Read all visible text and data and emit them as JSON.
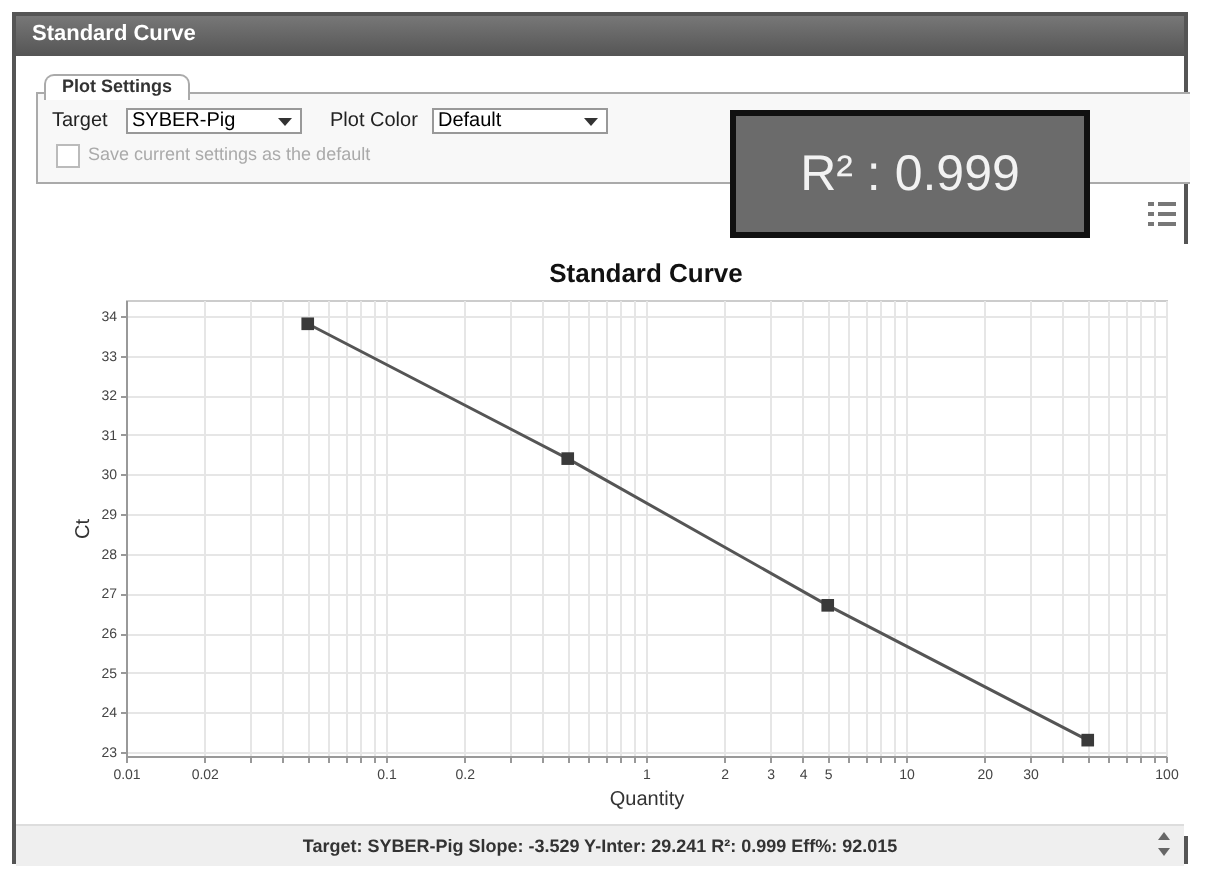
{
  "chart_data": {
    "type": "line",
    "title": "Standard Curve",
    "xlabel": "Quantity",
    "ylabel": "Ct",
    "log": "x",
    "grid": true,
    "marker": "square",
    "line_style": "solid",
    "x": [
      0.05,
      0.5,
      5,
      50
    ],
    "series": [
      {
        "color": "#555555",
        "values": [
          33.8,
          30.4,
          26.7,
          23.3
        ]
      }
    ],
    "xlim": [
      0.01,
      100
    ],
    "ylim": [
      22.9,
      34.4
    ],
    "xticks": [
      0.01,
      0.02,
      {
        "value": 0.03,
        "label": null
      },
      {
        "value": 0.04,
        "label": null
      },
      {
        "value": 0.05,
        "label": null
      },
      {
        "value": 0.06,
        "label": null
      },
      {
        "value": 0.07,
        "label": null
      },
      {
        "value": 0.08,
        "label": null
      },
      {
        "value": 0.09,
        "label": null
      },
      0.1,
      0.2,
      {
        "value": 0.3,
        "label": null
      },
      {
        "value": 0.4,
        "label": null
      },
      {
        "value": 0.5,
        "label": null
      },
      {
        "value": 0.6,
        "label": null
      },
      {
        "value": 0.7,
        "label": null
      },
      {
        "value": 0.8,
        "label": null
      },
      {
        "value": 0.9,
        "label": null
      },
      1,
      2,
      3,
      4,
      5,
      {
        "value": 6,
        "label": null
      },
      {
        "value": 7,
        "label": null
      },
      {
        "value": 8,
        "label": null
      },
      {
        "value": 9,
        "label": null
      },
      10,
      20,
      30,
      {
        "value": 40,
        "label": null
      },
      {
        "value": 50,
        "label": null
      },
      {
        "value": 60,
        "label": null
      },
      {
        "value": 70,
        "label": null
      },
      {
        "value": 80,
        "label": null
      },
      {
        "value": 90,
        "label": null
      },
      100
    ],
    "yticks": [
      23,
      24,
      25,
      26,
      27,
      28,
      29,
      30,
      31,
      32,
      33,
      34
    ],
    "annotations": [
      "Standard Curve",
      "Plot Settings",
      "Target",
      "SYBER-Pig",
      "Plot Color",
      "Default",
      "Save current settings as the default",
      "R² : 0.999",
      "Target: SYBER-Pig Slope: -3.529 Y-Inter: 29.241 R²: 0.999 Eff%: 92.015"
    ]
  }
}
